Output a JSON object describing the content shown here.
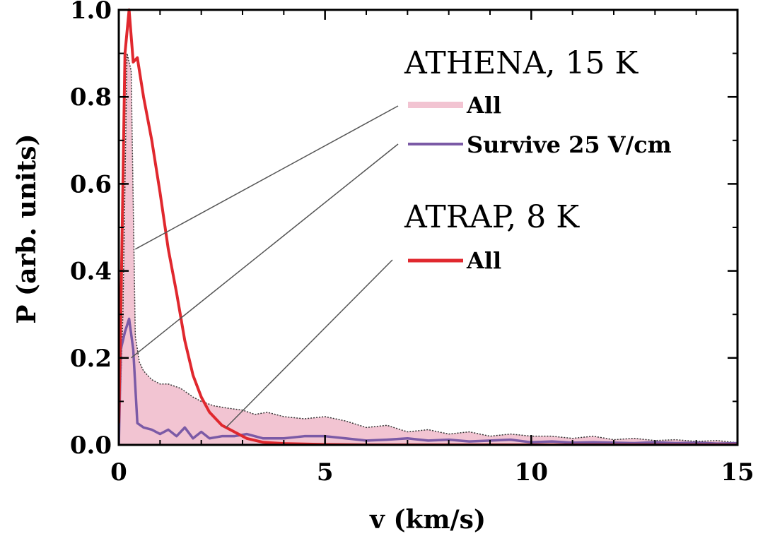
{
  "chart_data": {
    "type": "line",
    "title": "",
    "xlabel": "v (km/s)",
    "ylabel": "P (arb. units)",
    "xlim": [
      0,
      15
    ],
    "ylim": [
      0,
      1.0
    ],
    "xticks": [
      0,
      5,
      10,
      15
    ],
    "xtick_labels": [
      "0",
      "5",
      "10",
      "15"
    ],
    "yticks": [
      0.0,
      0.2,
      0.4,
      0.6,
      0.8,
      1.0
    ],
    "ytick_labels": [
      "0.0",
      "0.2",
      "0.4",
      "0.6",
      "0.8",
      "1.0"
    ],
    "grid": false,
    "legend_placement": "top-right",
    "legend_groups": [
      {
        "title": "ATHENA, 15 K",
        "entries": [
          {
            "series": "athena_all",
            "label": "All"
          },
          {
            "series": "athena_survive",
            "label": "Survive 25 V/cm"
          }
        ]
      },
      {
        "title": "ATRAP, 8 K",
        "entries": [
          {
            "series": "atrap_all",
            "label": "All"
          }
        ]
      }
    ],
    "colors": {
      "athena_all_fill": "#f2c4d2",
      "athena_all_edge": "#333333",
      "athena_survive": "#7b5aa6",
      "atrap_all": "#e0282e",
      "leader": "#555555"
    },
    "series": [
      {
        "id": "athena_all",
        "style": "filled-area",
        "x": [
          0,
          0.1,
          0.2,
          0.3,
          0.4,
          0.5,
          0.6,
          0.8,
          1.0,
          1.2,
          1.5,
          1.8,
          2.0,
          2.3,
          2.6,
          3.0,
          3.3,
          3.6,
          4.0,
          4.5,
          5.0,
          5.5,
          6.0,
          6.5,
          7.0,
          7.5,
          8.0,
          8.5,
          9.0,
          9.5,
          10.0,
          10.5,
          11.0,
          11.5,
          12.0,
          12.5,
          13.0,
          13.5,
          14.0,
          14.5,
          15.0
        ],
        "y": [
          0.0,
          0.3,
          0.9,
          0.86,
          0.25,
          0.19,
          0.17,
          0.15,
          0.14,
          0.14,
          0.13,
          0.11,
          0.1,
          0.09,
          0.085,
          0.08,
          0.07,
          0.075,
          0.065,
          0.06,
          0.065,
          0.055,
          0.04,
          0.045,
          0.03,
          0.035,
          0.025,
          0.03,
          0.02,
          0.025,
          0.02,
          0.02,
          0.015,
          0.02,
          0.012,
          0.015,
          0.01,
          0.012,
          0.008,
          0.01,
          0.005
        ]
      },
      {
        "id": "athena_survive",
        "style": "line",
        "x": [
          0,
          0.05,
          0.15,
          0.25,
          0.35,
          0.45,
          0.6,
          0.8,
          1.0,
          1.2,
          1.4,
          1.6,
          1.8,
          2.0,
          2.2,
          2.5,
          2.8,
          3.1,
          3.5,
          4.0,
          4.5,
          5.0,
          5.5,
          6.0,
          6.5,
          7.0,
          7.5,
          8.0,
          8.5,
          9.0,
          9.5,
          10.0,
          10.5,
          11.0,
          11.5,
          12.0,
          12.5,
          13.0,
          13.5,
          14.0,
          14.5,
          15.0
        ],
        "y": [
          0.0,
          0.22,
          0.26,
          0.29,
          0.22,
          0.05,
          0.04,
          0.035,
          0.025,
          0.035,
          0.02,
          0.04,
          0.015,
          0.03,
          0.015,
          0.02,
          0.02,
          0.025,
          0.015,
          0.015,
          0.02,
          0.02,
          0.015,
          0.01,
          0.012,
          0.015,
          0.01,
          0.012,
          0.008,
          0.01,
          0.012,
          0.006,
          0.008,
          0.005,
          0.006,
          0.005,
          0.004,
          0.006,
          0.004,
          0.005,
          0.003,
          0.004
        ]
      },
      {
        "id": "atrap_all",
        "style": "line",
        "x": [
          0,
          0.05,
          0.15,
          0.25,
          0.35,
          0.45,
          0.6,
          0.8,
          1.0,
          1.2,
          1.4,
          1.6,
          1.8,
          2.0,
          2.2,
          2.5,
          2.8,
          3.1,
          3.5,
          4.0,
          4.5,
          5.0,
          6.0,
          8.0,
          10.0,
          12.0,
          15.0
        ],
        "y": [
          0.05,
          0.3,
          0.9,
          1.0,
          0.88,
          0.89,
          0.8,
          0.7,
          0.58,
          0.45,
          0.35,
          0.24,
          0.16,
          0.11,
          0.075,
          0.045,
          0.03,
          0.015,
          0.006,
          0.003,
          0.002,
          0.001,
          0.0,
          0.0,
          0.0,
          0.0,
          0.0
        ]
      }
    ]
  }
}
